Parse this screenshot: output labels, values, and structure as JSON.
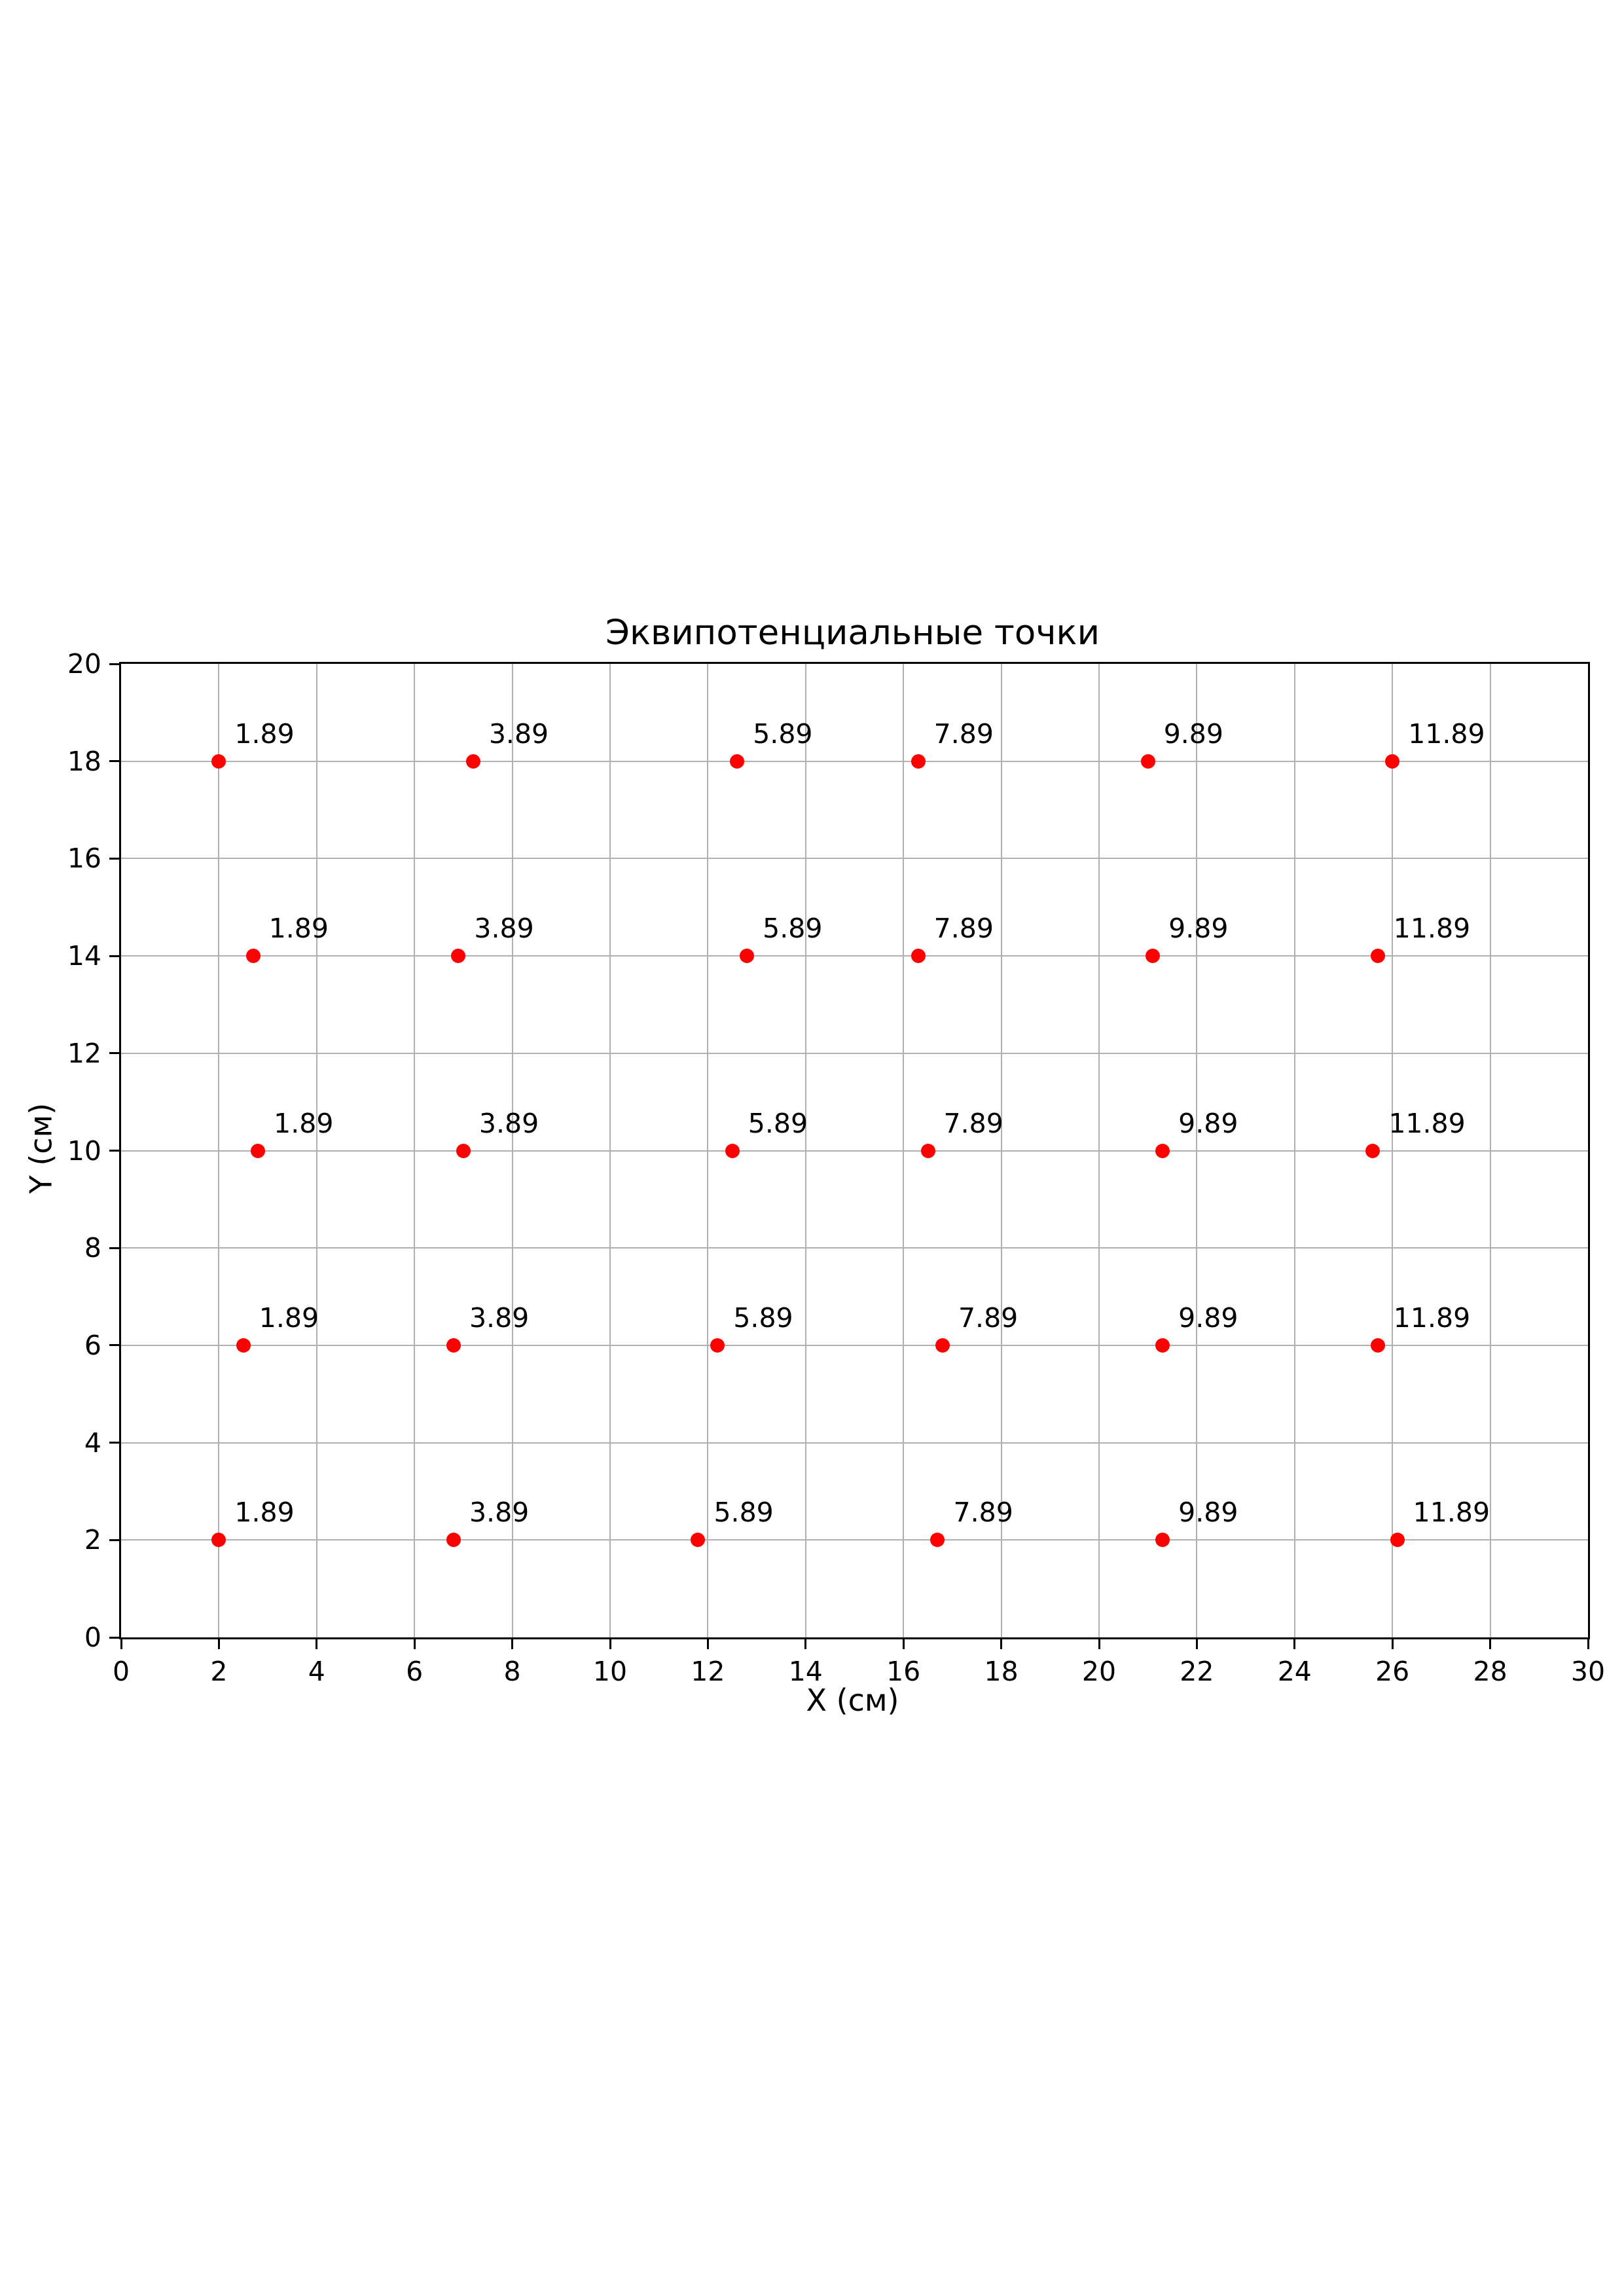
{
  "page": {
    "background": "#ffffff"
  },
  "chart_data": {
    "type": "scatter",
    "title": "Эквипотенциальные точки",
    "xlabel": "X (см)",
    "ylabel": "Y (см)",
    "xlim": [
      0,
      30
    ],
    "ylim": [
      0,
      20
    ],
    "xticks": [
      0,
      2,
      4,
      6,
      8,
      10,
      12,
      14,
      16,
      18,
      20,
      22,
      24,
      26,
      28,
      30
    ],
    "yticks": [
      0,
      2,
      4,
      6,
      8,
      10,
      12,
      14,
      16,
      18,
      20
    ],
    "grid": true,
    "legend_position": "none",
    "colors": {
      "marker": "#ff0000",
      "grid": "#b0b0b0",
      "spine": "#000000",
      "text": "#000000"
    },
    "series": [
      {
        "name": "equipotential-points",
        "points": [
          {
            "x": 2.0,
            "y": 18,
            "label": "1.89"
          },
          {
            "x": 7.2,
            "y": 18,
            "label": "3.89"
          },
          {
            "x": 12.6,
            "y": 18,
            "label": "5.89"
          },
          {
            "x": 16.3,
            "y": 18,
            "label": "7.89"
          },
          {
            "x": 21.0,
            "y": 18,
            "label": "9.89"
          },
          {
            "x": 26.0,
            "y": 18,
            "label": "11.89"
          },
          {
            "x": 2.7,
            "y": 14,
            "label": "1.89"
          },
          {
            "x": 6.9,
            "y": 14,
            "label": "3.89"
          },
          {
            "x": 12.8,
            "y": 14,
            "label": "5.89"
          },
          {
            "x": 16.3,
            "y": 14,
            "label": "7.89"
          },
          {
            "x": 21.1,
            "y": 14,
            "label": "9.89"
          },
          {
            "x": 25.7,
            "y": 14,
            "label": "11.89"
          },
          {
            "x": 2.8,
            "y": 10,
            "label": "1.89"
          },
          {
            "x": 7.0,
            "y": 10,
            "label": "3.89"
          },
          {
            "x": 12.5,
            "y": 10,
            "label": "5.89"
          },
          {
            "x": 16.5,
            "y": 10,
            "label": "7.89"
          },
          {
            "x": 21.3,
            "y": 10,
            "label": "9.89"
          },
          {
            "x": 25.6,
            "y": 10,
            "label": "11.89"
          },
          {
            "x": 2.5,
            "y": 6,
            "label": "1.89"
          },
          {
            "x": 6.8,
            "y": 6,
            "label": "3.89"
          },
          {
            "x": 12.2,
            "y": 6,
            "label": "5.89"
          },
          {
            "x": 16.8,
            "y": 6,
            "label": "7.89"
          },
          {
            "x": 21.3,
            "y": 6,
            "label": "9.89"
          },
          {
            "x": 25.7,
            "y": 6,
            "label": "11.89"
          },
          {
            "x": 2.0,
            "y": 2,
            "label": "1.89"
          },
          {
            "x": 6.8,
            "y": 2,
            "label": "3.89"
          },
          {
            "x": 11.8,
            "y": 2,
            "label": "5.89"
          },
          {
            "x": 16.7,
            "y": 2,
            "label": "7.89"
          },
          {
            "x": 21.3,
            "y": 2,
            "label": "9.89"
          },
          {
            "x": 26.1,
            "y": 2,
            "label": "11.89"
          }
        ]
      }
    ]
  }
}
